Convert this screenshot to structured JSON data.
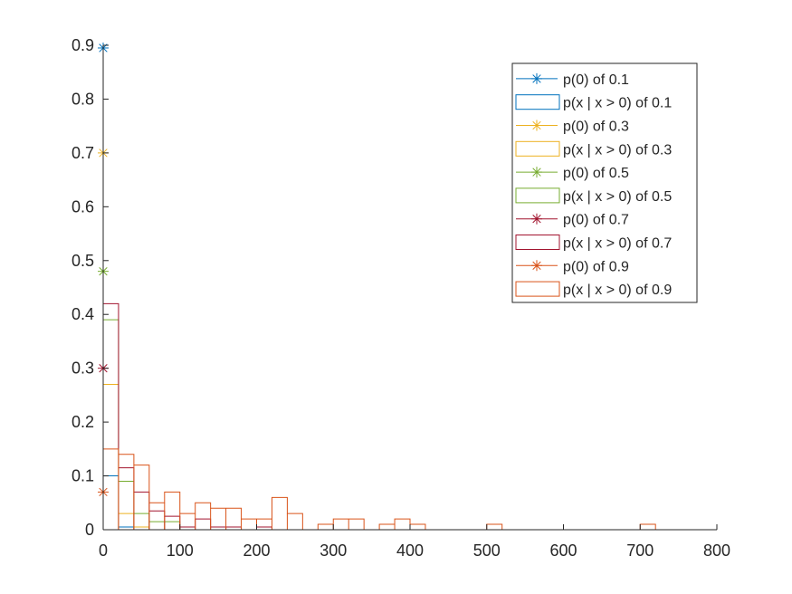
{
  "chart_data": {
    "type": "histogram",
    "title": "",
    "xlabel": "",
    "ylabel": "",
    "xlim": [
      0,
      800
    ],
    "ylim": [
      0,
      0.9
    ],
    "xticks": [
      0,
      100,
      200,
      300,
      400,
      500,
      600,
      700,
      800
    ],
    "yticks": [
      0,
      0.1,
      0.2,
      0.3,
      0.4,
      0.5,
      0.6,
      0.7,
      0.8,
      0.9
    ],
    "xtick_labels": [
      "0",
      "100",
      "200",
      "300",
      "400",
      "500",
      "600",
      "700",
      "800"
    ],
    "ytick_labels": [
      "0",
      "0.1",
      "0.2",
      "0.3",
      "0.4",
      "0.5",
      "0.6",
      "0.7",
      "0.8",
      "0.9"
    ],
    "grid": false,
    "legend_position": "top-right",
    "bin_width": 20,
    "series": [
      {
        "param": "0.1",
        "color": "#0072BD",
        "p0_label": "p(0) of 0.1",
        "hist_label": "p(x | x > 0) of 0.1",
        "p0": 0.895,
        "bins": [
          0,
          20,
          40
        ],
        "values": [
          0.1,
          0.005,
          0.0
        ]
      },
      {
        "param": "0.3",
        "color": "#EDB120",
        "p0_label": "p(0) of 0.3",
        "hist_label": "p(x | x > 0) of 0.3",
        "p0": 0.7,
        "bins": [
          0,
          20,
          40,
          60
        ],
        "values": [
          0.27,
          0.03,
          0.005,
          0.0
        ]
      },
      {
        "param": "0.5",
        "color": "#77AC30",
        "p0_label": "p(0) of 0.5",
        "hist_label": "p(x | x > 0) of 0.5",
        "p0": 0.48,
        "bins": [
          0,
          20,
          40,
          60,
          80,
          100
        ],
        "values": [
          0.39,
          0.09,
          0.03,
          0.015,
          0.015,
          0.0
        ]
      },
      {
        "param": "0.7",
        "color": "#A2142F",
        "p0_label": "p(0) of 0.7",
        "hist_label": "p(x | x > 0) of 0.7",
        "p0": 0.3,
        "bins": [
          0,
          20,
          40,
          60,
          80,
          100,
          120,
          140,
          160,
          180,
          200,
          220
        ],
        "values": [
          0.42,
          0.115,
          0.07,
          0.035,
          0.025,
          0.005,
          0.02,
          0.005,
          0.005,
          0.0,
          0.005,
          0.0
        ]
      },
      {
        "param": "0.9",
        "color": "#D95319",
        "p0_label": "p(0) of 0.9",
        "hist_label": "p(x | x > 0) of 0.9",
        "p0": 0.07,
        "bins": [
          0,
          20,
          40,
          60,
          80,
          100,
          120,
          140,
          160,
          180,
          200,
          220,
          240,
          260,
          280,
          300,
          320,
          340,
          360,
          380,
          400,
          420,
          440,
          460,
          480,
          500,
          520,
          540,
          560,
          580,
          600,
          620,
          640,
          660,
          680,
          700,
          720
        ],
        "values": [
          0.15,
          0.14,
          0.12,
          0.05,
          0.07,
          0.03,
          0.05,
          0.04,
          0.04,
          0.02,
          0.02,
          0.06,
          0.03,
          0.0,
          0.01,
          0.02,
          0.02,
          0.0,
          0.01,
          0.02,
          0.01,
          0.0,
          0.0,
          0.0,
          0.0,
          0.01,
          0.0,
          0.0,
          0.0,
          0.0,
          0.0,
          0.0,
          0.0,
          0.0,
          0.0,
          0.01,
          0.0
        ]
      }
    ]
  }
}
